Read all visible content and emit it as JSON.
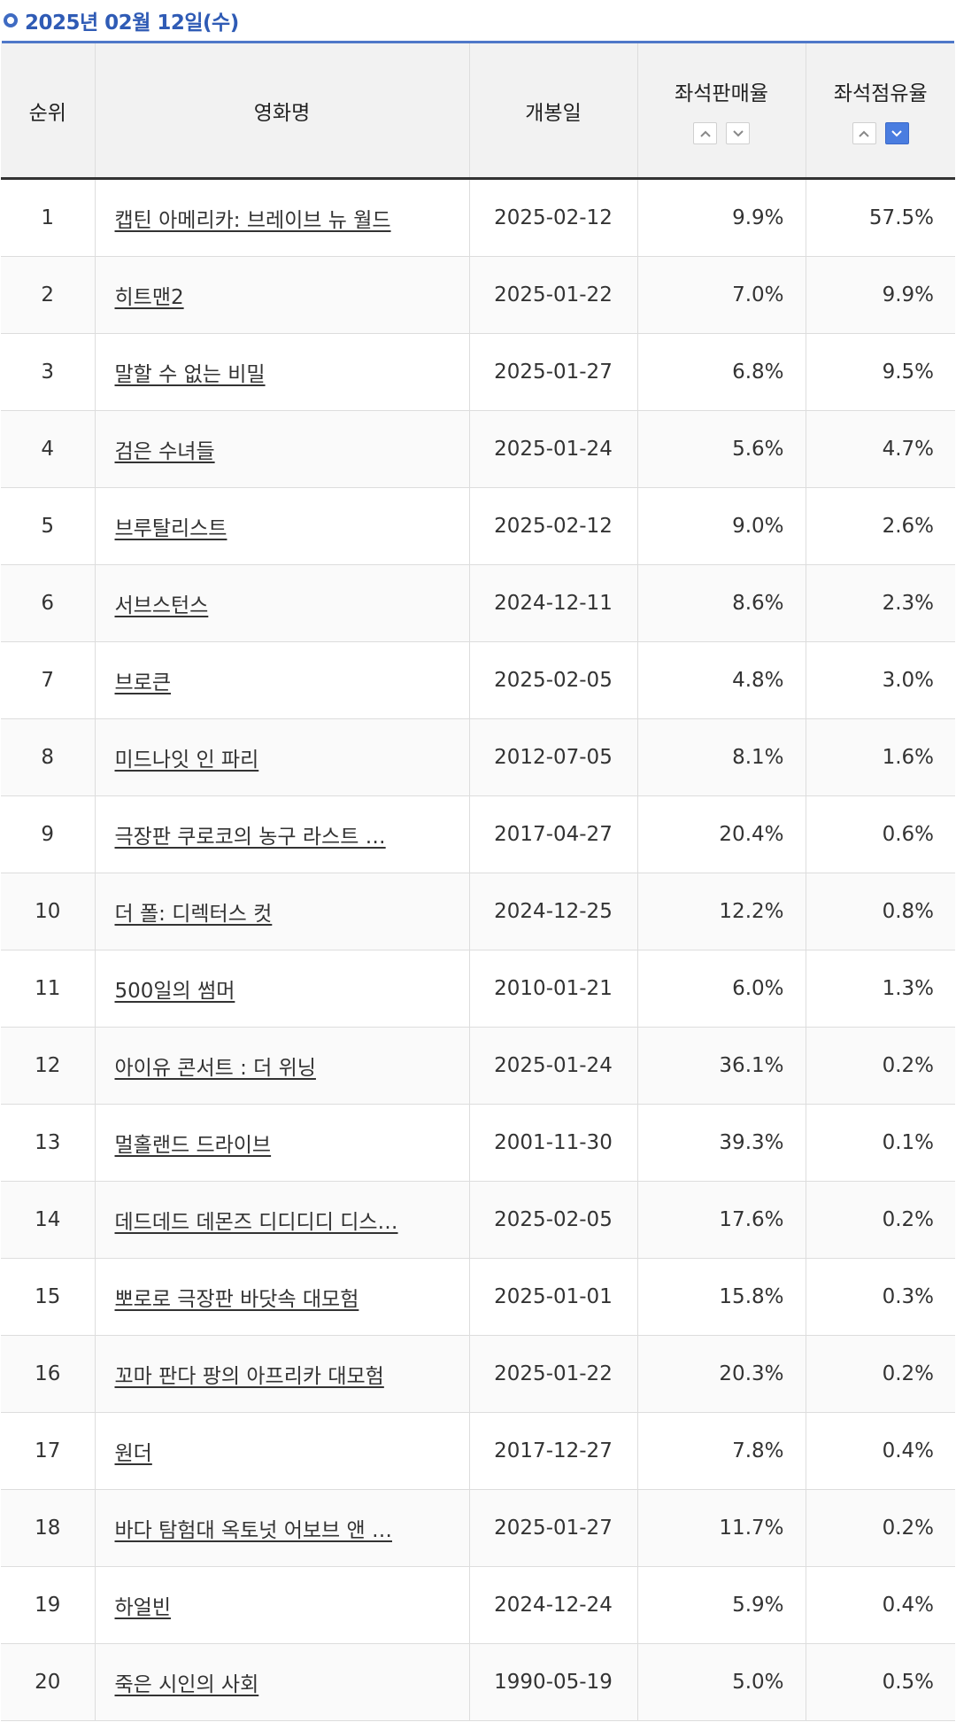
{
  "header": {
    "date": "2025년 02월 12일(수)"
  },
  "table": {
    "columns": {
      "rank": "순위",
      "title": "영화명",
      "open_date": "개봉일",
      "sales_rate": "좌석판매율",
      "occupancy_rate": "좌석점유율"
    },
    "sort": {
      "sales_rate": "none",
      "occupancy_rate": "descending"
    },
    "rows": [
      {
        "rank": "1",
        "title": "캡틴 아메리카: 브레이브 뉴 월드",
        "open_date": "2025-02-12",
        "sales_rate": "9.9%",
        "occupancy_rate": "57.5%"
      },
      {
        "rank": "2",
        "title": "히트맨2",
        "open_date": "2025-01-22",
        "sales_rate": "7.0%",
        "occupancy_rate": "9.9%"
      },
      {
        "rank": "3",
        "title": "말할 수 없는 비밀",
        "open_date": "2025-01-27",
        "sales_rate": "6.8%",
        "occupancy_rate": "9.5%"
      },
      {
        "rank": "4",
        "title": "검은 수녀들",
        "open_date": "2025-01-24",
        "sales_rate": "5.6%",
        "occupancy_rate": "4.7%"
      },
      {
        "rank": "5",
        "title": "브루탈리스트",
        "open_date": "2025-02-12",
        "sales_rate": "9.0%",
        "occupancy_rate": "2.6%"
      },
      {
        "rank": "6",
        "title": "서브스턴스",
        "open_date": "2024-12-11",
        "sales_rate": "8.6%",
        "occupancy_rate": "2.3%"
      },
      {
        "rank": "7",
        "title": "브로큰",
        "open_date": "2025-02-05",
        "sales_rate": "4.8%",
        "occupancy_rate": "3.0%"
      },
      {
        "rank": "8",
        "title": "미드나잇 인 파리",
        "open_date": "2012-07-05",
        "sales_rate": "8.1%",
        "occupancy_rate": "1.6%"
      },
      {
        "rank": "9",
        "title": "극장판 쿠로코의 농구 라스트 …",
        "open_date": "2017-04-27",
        "sales_rate": "20.4%",
        "occupancy_rate": "0.6%"
      },
      {
        "rank": "10",
        "title": "더 폴: 디렉터스 컷",
        "open_date": "2024-12-25",
        "sales_rate": "12.2%",
        "occupancy_rate": "0.8%"
      },
      {
        "rank": "11",
        "title": "500일의 썸머",
        "open_date": "2010-01-21",
        "sales_rate": "6.0%",
        "occupancy_rate": "1.3%"
      },
      {
        "rank": "12",
        "title": "아이유 콘서트 : 더 위닝",
        "open_date": "2025-01-24",
        "sales_rate": "36.1%",
        "occupancy_rate": "0.2%"
      },
      {
        "rank": "13",
        "title": "멀홀랜드 드라이브",
        "open_date": "2001-11-30",
        "sales_rate": "39.3%",
        "occupancy_rate": "0.1%"
      },
      {
        "rank": "14",
        "title": "데드데드 데몬즈 디디디디 디스…",
        "open_date": "2025-02-05",
        "sales_rate": "17.6%",
        "occupancy_rate": "0.2%"
      },
      {
        "rank": "15",
        "title": "뽀로로 극장판 바닷속 대모험",
        "open_date": "2025-01-01",
        "sales_rate": "15.8%",
        "occupancy_rate": "0.3%"
      },
      {
        "rank": "16",
        "title": "꼬마 판다 팡의 아프리카 대모험",
        "open_date": "2025-01-22",
        "sales_rate": "20.3%",
        "occupancy_rate": "0.2%"
      },
      {
        "rank": "17",
        "title": "원더",
        "open_date": "2017-12-27",
        "sales_rate": "7.8%",
        "occupancy_rate": "0.4%"
      },
      {
        "rank": "18",
        "title": "바다 탐험대 옥토넛 어보브 앤 …",
        "open_date": "2025-01-27",
        "sales_rate": "11.7%",
        "occupancy_rate": "0.2%"
      },
      {
        "rank": "19",
        "title": "하얼빈",
        "open_date": "2024-12-24",
        "sales_rate": "5.9%",
        "occupancy_rate": "0.4%"
      },
      {
        "rank": "20",
        "title": "죽은 시인의 사회",
        "open_date": "1990-05-19",
        "sales_rate": "5.0%",
        "occupancy_rate": "0.5%"
      }
    ]
  },
  "colors": {
    "accent": "#2f5bb5",
    "rule": "#4f78c9",
    "active_sort": "#4a7de0",
    "header_bg": "#f2f2f2"
  },
  "icons": {
    "bullet": "circle-bullet-icon",
    "sort_up": "chevron-up-icon",
    "sort_down": "chevron-down-icon"
  }
}
